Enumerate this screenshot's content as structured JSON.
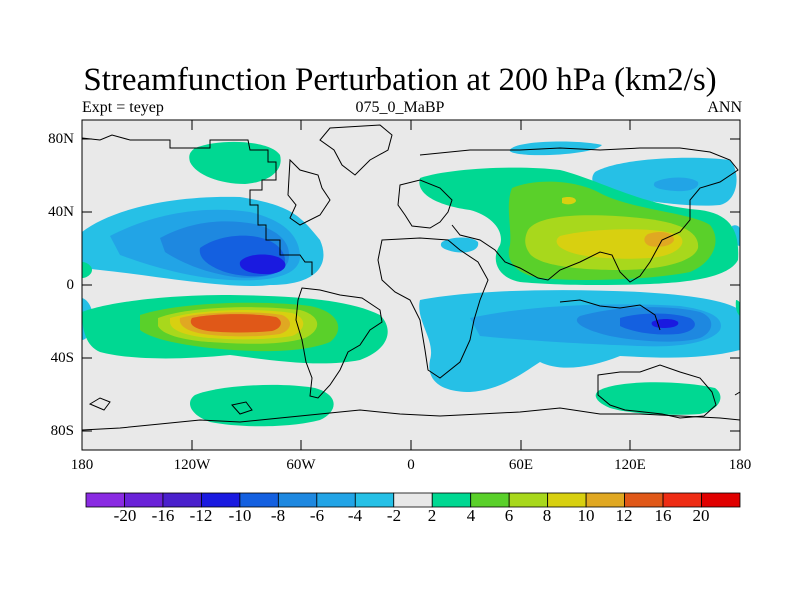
{
  "title": "Streamfunction Perturbation at 200 hPa (km2/s)",
  "subtitle_left": "Expt = teyep",
  "subtitle_center": "075_0_MaBP",
  "subtitle_right": "ANN",
  "lat_labels": [
    "80N",
    "40N",
    "0",
    "40S",
    "80S"
  ],
  "lon_labels": [
    "180",
    "120W",
    "60W",
    "0",
    "60E",
    "120E",
    "180"
  ],
  "colorbar": {
    "colors": [
      "#8a2be2",
      "#6a22d8",
      "#4a20cc",
      "#1a1ae0",
      "#1460e0",
      "#1e88e0",
      "#22a4e6",
      "#26c0e6",
      "#e8e8e8",
      "#00d892",
      "#5ad02a",
      "#a8d81c",
      "#d8d010",
      "#e0a822",
      "#e05818",
      "#ee2c14",
      "#e00000"
    ],
    "labels": [
      "-20",
      "-16",
      "-12",
      "-10",
      "-8",
      "-6",
      "-4",
      "-2",
      "2",
      "4",
      "6",
      "8",
      "10",
      "12",
      "16",
      "20"
    ]
  }
}
